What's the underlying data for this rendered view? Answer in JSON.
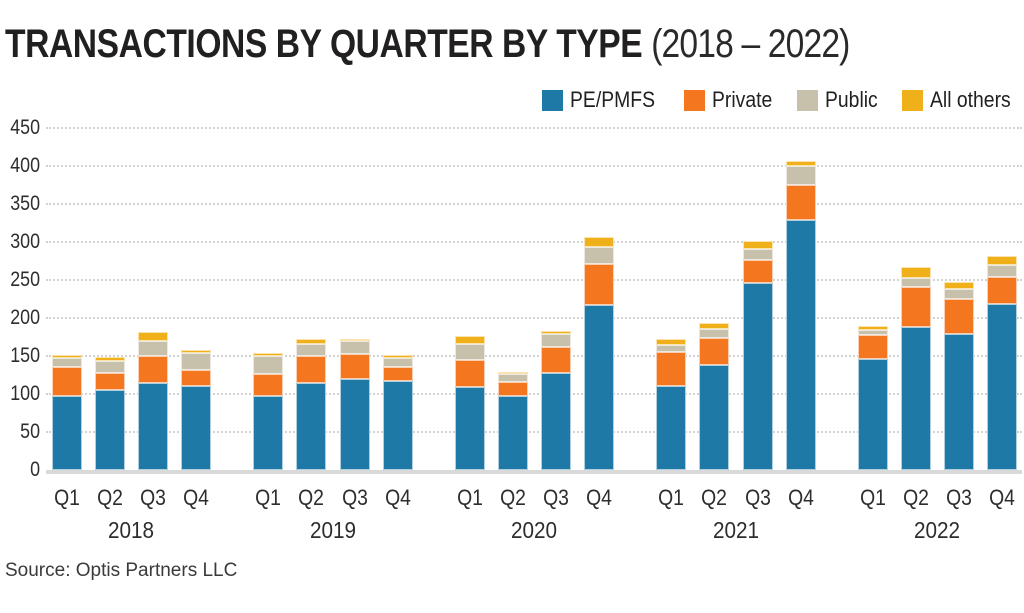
{
  "title": {
    "main": "TRANSACTIONS BY QUARTER BY TYPE",
    "period": "(2018 – 2022)"
  },
  "legend": [
    {
      "label": "PE/PMFS",
      "color": "#1E79A7"
    },
    {
      "label": "Private",
      "color": "#F4761F"
    },
    {
      "label": "Public",
      "color": "#C7C1AC"
    },
    {
      "label": "All others",
      "color": "#F0B019"
    }
  ],
  "source": "Source: Optis Partners LLC",
  "chart_data": {
    "type": "bar",
    "stacked": true,
    "title": "TRANSACTIONS BY QUARTER BY TYPE (2018 – 2022)",
    "ylabel": "",
    "xlabel": "",
    "ylim": [
      0,
      450
    ],
    "ytick_step": 50,
    "yticks": [
      0,
      50,
      100,
      150,
      200,
      250,
      300,
      350,
      400,
      450
    ],
    "grid": "horizontal-dotted",
    "legend_position": "top-right",
    "years": [
      "2018",
      "2019",
      "2020",
      "2021",
      "2022"
    ],
    "quarters": [
      "Q1",
      "Q2",
      "Q3",
      "Q4"
    ],
    "series": [
      {
        "name": "PE/PMFS",
        "color": "#1E79A7",
        "values": [
          98,
          105,
          115,
          111,
          97,
          114,
          120,
          117,
          109,
          97,
          128,
          217,
          111,
          138,
          246,
          329,
          146,
          188,
          179,
          218
        ]
      },
      {
        "name": "Private",
        "color": "#F4761F",
        "values": [
          37,
          23,
          35,
          21,
          29,
          36,
          33,
          19,
          36,
          19,
          34,
          54,
          44,
          36,
          30,
          46,
          32,
          53,
          46,
          36
        ]
      },
      {
        "name": "Public",
        "color": "#C7C1AC",
        "values": [
          12,
          16,
          20,
          22,
          24,
          16,
          17,
          11,
          21,
          10,
          17,
          22,
          10,
          12,
          15,
          25,
          6,
          11,
          13,
          16
        ]
      },
      {
        "name": "All others",
        "color": "#F0B019",
        "values": [
          4,
          5,
          12,
          4,
          4,
          6,
          3,
          4,
          10,
          3,
          4,
          13,
          8,
          8,
          10,
          6,
          6,
          15,
          9,
          11
        ]
      }
    ],
    "totals": [
      151,
      149,
      182,
      158,
      154,
      172,
      173,
      151,
      176,
      129,
      183,
      306,
      173,
      194,
      301,
      406,
      190,
      267,
      247,
      281
    ]
  }
}
